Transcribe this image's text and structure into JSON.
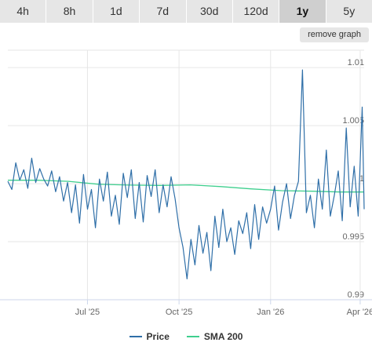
{
  "range_tabs": [
    "4h",
    "8h",
    "1d",
    "7d",
    "30d",
    "120d",
    "1y",
    "5y"
  ],
  "active_tab": "1y",
  "remove_graph_label": "remove graph",
  "colors": {
    "price": "#2f6fa8",
    "sma": "#3fcf8e",
    "grid": "#e6e6e6",
    "axis": "#ccd6eb"
  },
  "legend": {
    "price": "Price",
    "sma": "SMA 200"
  },
  "chart_data": {
    "type": "line",
    "x_ticks": [
      "Jul '25",
      "Oct '25",
      "Jan '26",
      "Apr '26"
    ],
    "y_ticks": [
      "0.99",
      "0.995",
      "1",
      "1.005",
      "1.01"
    ],
    "ylim": [
      0.99,
      1.0115
    ],
    "xlim": [
      "2025-04-12",
      "2026-04-05"
    ],
    "legend_position": "bottom",
    "series": [
      {
        "name": "Price",
        "x": [
          "2025-04-12",
          "2025-04-16",
          "2025-04-20",
          "2025-04-24",
          "2025-04-28",
          "2025-05-02",
          "2025-05-06",
          "2025-05-10",
          "2025-05-14",
          "2025-05-18",
          "2025-05-22",
          "2025-05-26",
          "2025-05-30",
          "2025-06-03",
          "2025-06-07",
          "2025-06-11",
          "2025-06-15",
          "2025-06-19",
          "2025-06-23",
          "2025-06-27",
          "2025-07-01",
          "2025-07-05",
          "2025-07-09",
          "2025-07-13",
          "2025-07-17",
          "2025-07-21",
          "2025-07-25",
          "2025-07-29",
          "2025-08-02",
          "2025-08-06",
          "2025-08-10",
          "2025-08-14",
          "2025-08-18",
          "2025-08-22",
          "2025-08-26",
          "2025-08-30",
          "2025-09-03",
          "2025-09-07",
          "2025-09-11",
          "2025-09-15",
          "2025-09-19",
          "2025-09-23",
          "2025-09-27",
          "2025-10-01",
          "2025-10-05",
          "2025-10-09",
          "2025-10-13",
          "2025-10-17",
          "2025-10-21",
          "2025-10-25",
          "2025-10-29",
          "2025-11-02",
          "2025-11-06",
          "2025-11-10",
          "2025-11-14",
          "2025-11-18",
          "2025-11-22",
          "2025-11-26",
          "2025-11-30",
          "2025-12-04",
          "2025-12-08",
          "2025-12-12",
          "2025-12-16",
          "2025-12-20",
          "2025-12-24",
          "2025-12-28",
          "2026-01-01",
          "2026-01-05",
          "2026-01-09",
          "2026-01-13",
          "2026-01-17",
          "2026-01-21",
          "2026-01-25",
          "2026-01-29",
          "2026-02-02",
          "2026-02-06",
          "2026-02-10",
          "2026-02-14",
          "2026-02-18",
          "2026-02-22",
          "2026-02-26",
          "2026-03-02",
          "2026-03-06",
          "2026-03-10",
          "2026-03-14",
          "2026-03-18",
          "2026-03-22",
          "2026-03-26",
          "2026-03-30",
          "2026-04-03",
          "2026-04-05"
        ],
        "y": [
          1.0002,
          0.9995,
          1.0018,
          1.0003,
          1.0012,
          0.9996,
          1.0022,
          1.0001,
          1.0013,
          1.0004,
          0.9998,
          1.0011,
          0.9993,
          1.0006,
          0.9985,
          1.0001,
          0.9975,
          0.9999,
          0.9966,
          1.0008,
          0.9978,
          0.9995,
          0.9962,
          1.0004,
          0.9985,
          1.001,
          0.9972,
          0.999,
          0.9965,
          1.0009,
          0.9988,
          1.0012,
          0.997,
          1.0001,
          0.9967,
          1.0007,
          0.9989,
          1.0012,
          0.9975,
          0.9999,
          0.998,
          1.0006,
          0.9987,
          0.9962,
          0.9945,
          0.9918,
          0.9952,
          0.993,
          0.9964,
          0.994,
          0.9958,
          0.9925,
          0.9972,
          0.9945,
          0.9978,
          0.995,
          0.9962,
          0.9939,
          0.9968,
          0.9957,
          0.9975,
          0.9944,
          0.9982,
          0.9952,
          0.998,
          0.9966,
          0.9978,
          0.9998,
          0.996,
          0.9984,
          1.0,
          0.997,
          0.999,
          1.0002,
          1.0098,
          0.9975,
          0.999,
          0.9962,
          1.0004,
          0.9978,
          1.0029,
          0.9972,
          0.999,
          1.0011,
          0.9968,
          1.0048,
          0.998,
          1.0015,
          0.9972,
          1.0066,
          0.9978
        ]
      },
      {
        "name": "SMA 200",
        "x": [
          "2025-04-12",
          "2025-05-12",
          "2025-06-12",
          "2025-07-12",
          "2025-08-12",
          "2025-09-12",
          "2025-10-12",
          "2025-11-12",
          "2025-12-12",
          "2026-01-12",
          "2026-02-12",
          "2026-03-12",
          "2026-04-05"
        ],
        "y": [
          1.0003,
          1.0003,
          1.0002,
          0.99995,
          0.99988,
          0.99985,
          0.9999,
          0.99975,
          0.99955,
          0.9994,
          0.99935,
          0.99928,
          0.99928
        ]
      }
    ]
  }
}
